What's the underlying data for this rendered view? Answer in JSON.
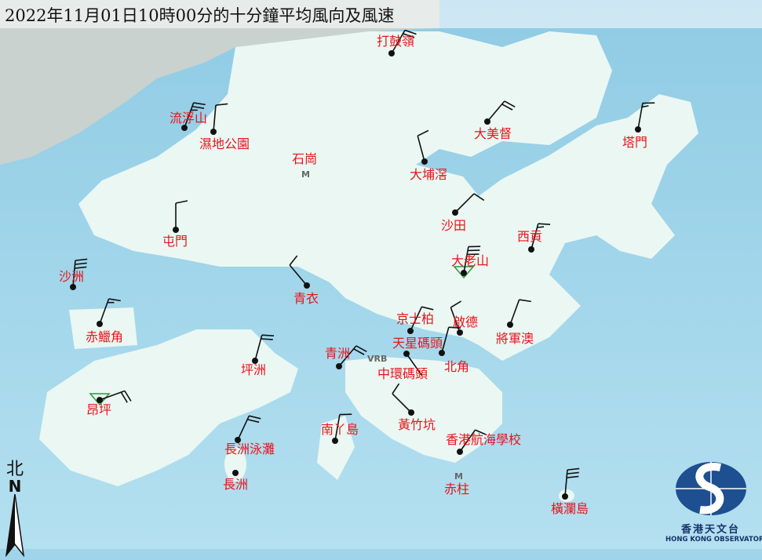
{
  "title": "2022年11月01日10時00分的十分鐘平均風向及風速",
  "north_label": "北",
  "north_letter": "N",
  "logo": {
    "zh": "香港天文台",
    "en": "HONG KONG OBSERVATORY"
  },
  "colors": {
    "sea": "#9fd4ea",
    "land": "#eaf7f3",
    "label": "#e8141a",
    "barb": "#111111"
  },
  "map_marks": [
    {
      "label": "M",
      "station": "石崗"
    },
    {
      "label": "M",
      "station": "赤柱"
    },
    {
      "label": "VRB",
      "station": "天星碼頭"
    }
  ],
  "place_labels": {
    "shek_kong": "石崗",
    "stanley": "赤柱",
    "central_pier": "中環碼頭"
  },
  "stations": [
    {
      "name": "打鼓嶺",
      "direction_deg": 30,
      "barbs": 2
    },
    {
      "name": "流浮山",
      "direction_deg": 20,
      "barbs": 2.5
    },
    {
      "name": "濕地公園",
      "direction_deg": 5,
      "barbs": 1
    },
    {
      "name": "大美督",
      "direction_deg": 40,
      "barbs": 2
    },
    {
      "name": "塔門",
      "direction_deg": 10,
      "barbs": 1.5
    },
    {
      "name": "大埔滘",
      "direction_deg": 345,
      "barbs": 1
    },
    {
      "name": "沙田",
      "direction_deg": 45,
      "barbs": 1
    },
    {
      "name": "屯門",
      "direction_deg": 0,
      "barbs": 1
    },
    {
      "name": "西貢",
      "direction_deg": 15,
      "barbs": 1.5
    },
    {
      "name": "大老山",
      "direction_deg": 10,
      "barbs": 3
    },
    {
      "name": "沙洲",
      "direction_deg": 5,
      "barbs": 3
    },
    {
      "name": "青衣",
      "direction_deg": 320,
      "barbs": 1
    },
    {
      "name": "赤鱲角",
      "direction_deg": 20,
      "barbs": 1.5
    },
    {
      "name": "京士柏",
      "direction_deg": 25,
      "barbs": 1
    },
    {
      "name": "啟德",
      "direction_deg": 340,
      "barbs": 1
    },
    {
      "name": "將軍澳",
      "direction_deg": 20,
      "barbs": 1
    },
    {
      "name": "天星碼頭",
      "direction_deg": 145,
      "barbs": 0
    },
    {
      "name": "北角",
      "direction_deg": 15,
      "barbs": 1
    },
    {
      "name": "坪洲",
      "direction_deg": 15,
      "barbs": 2
    },
    {
      "name": "青洲",
      "direction_deg": 40,
      "barbs": 2
    },
    {
      "name": "黃竹坑",
      "direction_deg": 315,
      "barbs": 1
    },
    {
      "name": "昂坪",
      "direction_deg": 70,
      "barbs": 2
    },
    {
      "name": "南丫島",
      "direction_deg": 10,
      "barbs": 1
    },
    {
      "name": "香港航海學校",
      "direction_deg": 35,
      "barbs": 1
    },
    {
      "name": "長洲泳灘",
      "direction_deg": 25,
      "barbs": 2
    },
    {
      "name": "長洲",
      "direction_deg": null,
      "barbs": 0
    },
    {
      "name": "橫瀾島",
      "direction_deg": 5,
      "barbs": 3
    }
  ]
}
